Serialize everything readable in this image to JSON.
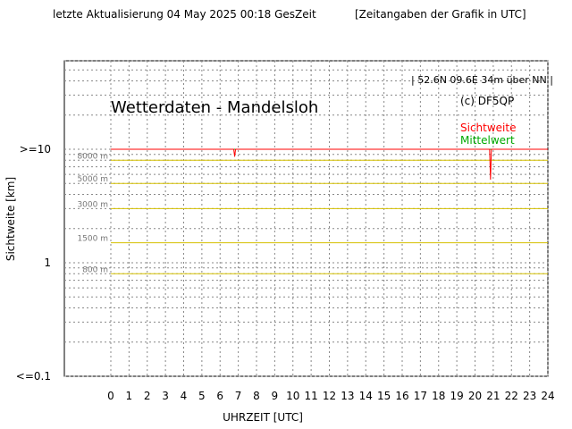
{
  "header": {
    "update_text": "letzte Aktualisierung 04 May 2025 00:18 GesZeit",
    "time_note": "[Zeitangaben der Grafik in UTC]"
  },
  "chart_data": {
    "type": "line",
    "title": "Wetterdaten - Mandelsloh",
    "location": "| 52.6N 09.6E 34m über NN |",
    "copyright": "(c) DF5QP",
    "xlabel": "UHRZEIT [UTC]",
    "ylabel": "Sichtweite [km]",
    "x_scale": "linear",
    "y_scale": "log",
    "xlim": [
      0,
      24
    ],
    "ylim": [
      0.1,
      10
    ],
    "x_ticks": [
      0,
      1,
      2,
      3,
      4,
      5,
      6,
      7,
      8,
      9,
      10,
      11,
      12,
      13,
      14,
      15,
      16,
      17,
      18,
      19,
      20,
      21,
      22,
      23,
      24
    ],
    "y_tick_labels": [
      {
        "value": 10,
        "label": ">=10"
      },
      {
        "value": 1,
        "label": "1"
      },
      {
        "value": 0.1,
        "label": "<=0.1"
      }
    ],
    "grid": true,
    "reference_lines": [
      {
        "value": 8,
        "label": "8000 m"
      },
      {
        "value": 5,
        "label": "5000 m"
      },
      {
        "value": 3,
        "label": "3000 m"
      },
      {
        "value": 1.5,
        "label": "1500 m"
      },
      {
        "value": 0.8,
        "label": "800 m"
      }
    ],
    "legend_placement": "top-right",
    "series": [
      {
        "name": "Sichtweite",
        "color": "#ff0000",
        "x": [
          0,
          6.75,
          6.8,
          6.85,
          20.8,
          20.85,
          20.9,
          24
        ],
        "y": [
          10,
          10,
          8.6,
          10,
          10,
          5.4,
          10,
          10
        ]
      },
      {
        "name": "Mittelwert",
        "color": "#00aa00",
        "x": [
          0,
          24
        ],
        "y": [
          10,
          10
        ]
      }
    ]
  }
}
